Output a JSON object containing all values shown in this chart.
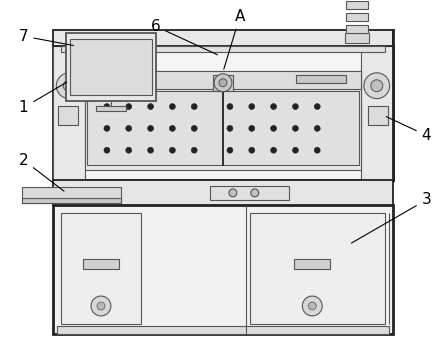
{
  "fig_width": 4.44,
  "fig_height": 3.55,
  "dpi": 100,
  "bg_color": "#ffffff",
  "lc": "#555555",
  "lc_dark": "#222222",
  "lc_thick": "#333333"
}
